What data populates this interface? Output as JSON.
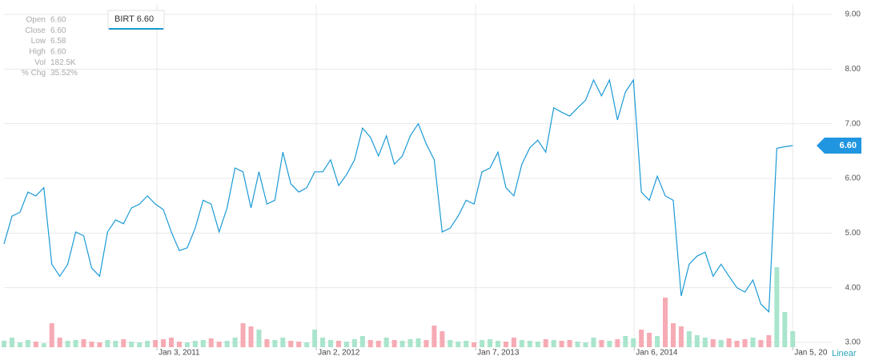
{
  "chart_data": {
    "type": "line",
    "info": [
      {
        "label": "Open",
        "value": "6.60"
      },
      {
        "label": "Close",
        "value": "6.60"
      },
      {
        "label": "Low",
        "value": "6.58"
      },
      {
        "label": "High",
        "value": "6.60"
      },
      {
        "label": "Vol",
        "value": "182.5K"
      },
      {
        "label": "% Chg",
        "value": "35.52%"
      }
    ],
    "last_price": "6.60",
    "scale_label": "Linear",
    "up_color": "#a9e5cc",
    "down_color": "#f6aab4",
    "xlim": [
      0,
      104
    ],
    "xticks": [
      {
        "value": 19.2,
        "label": "Jan 3, 2011"
      },
      {
        "value": 39.2,
        "label": "Jan 2, 2012"
      },
      {
        "value": 59.2,
        "label": "Jan 7, 2013"
      },
      {
        "value": 79.1,
        "label": "Jan 6, 2014"
      },
      {
        "value": 99,
        "label": "Jan 5, 20"
      }
    ],
    "ylim": [
      3,
      9
    ],
    "yticks": [
      {
        "value": 3,
        "label": "3.00"
      },
      {
        "value": 4,
        "label": "4.00"
      },
      {
        "value": 5,
        "label": "5.00"
      },
      {
        "value": 6,
        "label": "6.00"
      },
      {
        "value": 7,
        "label": "7.00"
      },
      {
        "value": 8,
        "label": "8.00"
      },
      {
        "value": 9,
        "label": "9.00"
      }
    ],
    "volume_lim": [
      0,
      1000
    ],
    "grid": true,
    "series": [
      {
        "name": "BIRT",
        "color": "#1b9ad6",
        "values": [
          4.8,
          5.31,
          5.38,
          5.75,
          5.68,
          5.83,
          4.43,
          4.21,
          4.43,
          5.02,
          4.95,
          4.36,
          4.21,
          5.02,
          5.24,
          5.17,
          5.46,
          5.53,
          5.68,
          5.53,
          5.43,
          5.02,
          4.68,
          4.73,
          5.09,
          5.6,
          5.53,
          5.02,
          5.46,
          6.19,
          6.12,
          5.46,
          6.12,
          5.53,
          5.6,
          6.48,
          5.9,
          5.75,
          5.83,
          6.12,
          6.12,
          6.34,
          5.87,
          6.07,
          6.34,
          6.92,
          6.75,
          6.41,
          6.78,
          6.26,
          6.41,
          6.78,
          7.0,
          6.63,
          6.34,
          5.02,
          5.09,
          5.31,
          5.6,
          5.53,
          6.12,
          6.19,
          6.48,
          5.83,
          5.68,
          6.26,
          6.56,
          6.7,
          6.48,
          7.29,
          7.21,
          7.14,
          7.29,
          7.43,
          7.8,
          7.51,
          7.8,
          7.07,
          7.58,
          7.8,
          5.75,
          5.6,
          6.04,
          5.68,
          5.6,
          3.85,
          4.43,
          4.58,
          4.65,
          4.21,
          4.43,
          4.21,
          4.0,
          3.92,
          4.14,
          3.7,
          3.56,
          6.55,
          6.58,
          6.6
        ]
      }
    ],
    "volume": [
      80,
      120,
      60,
      90,
      70,
      50,
      300,
      120,
      80,
      90,
      100,
      70,
      60,
      90,
      80,
      100,
      70,
      60,
      80,
      90,
      100,
      120,
      70,
      60,
      80,
      90,
      110,
      70,
      80,
      120,
      300,
      260,
      220,
      100,
      90,
      120,
      80,
      70,
      60,
      220,
      120,
      90,
      80,
      70,
      100,
      140,
      90,
      80,
      120,
      90,
      80,
      100,
      110,
      90,
      270,
      200,
      90,
      70,
      80,
      60,
      90,
      100,
      80,
      70,
      120,
      90,
      80,
      70,
      100,
      90,
      80,
      90,
      70,
      60,
      120,
      90,
      80,
      100,
      140,
      110,
      220,
      180,
      140,
      620,
      300,
      260,
      200,
      150,
      120,
      100,
      90,
      110,
      80,
      100,
      120,
      90,
      150,
      1000,
      440,
      200
    ]
  }
}
